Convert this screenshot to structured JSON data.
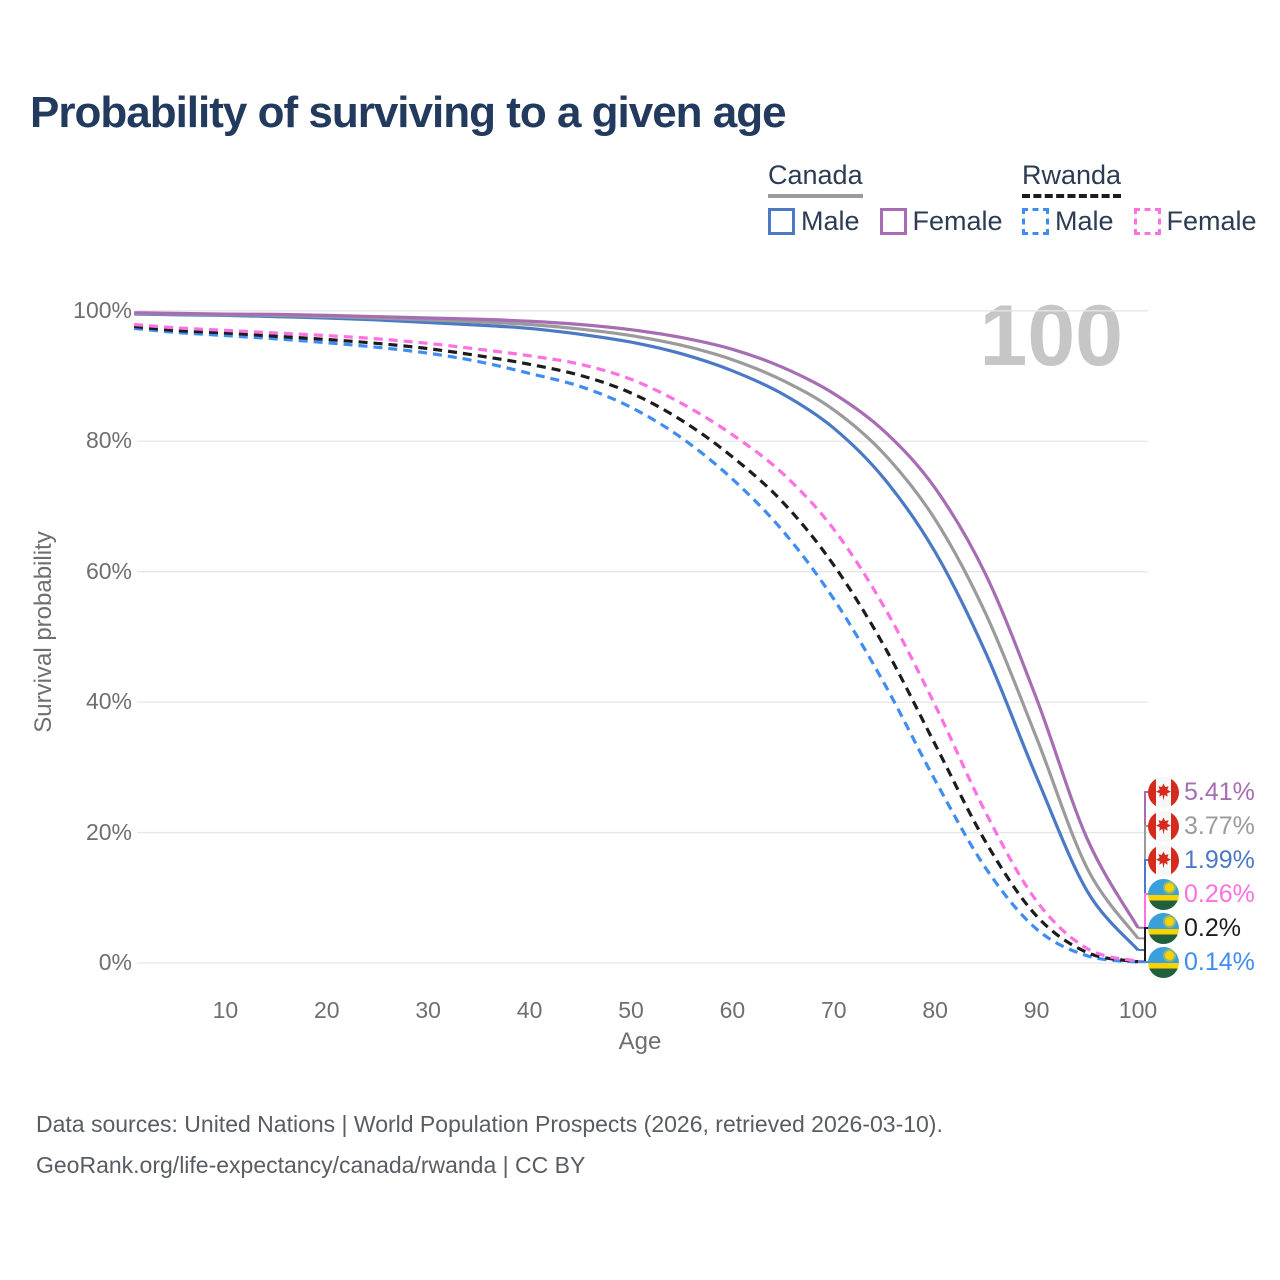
{
  "title": "Probability of surviving to a given age",
  "watermark_age": "100",
  "legend": {
    "groups": [
      {
        "name": "Canada",
        "line_style": "solid",
        "underline_color": "#9b9b9b",
        "items": [
          {
            "label": "Male",
            "color": "#4b79c5"
          },
          {
            "label": "Female",
            "color": "#a76db3"
          }
        ]
      },
      {
        "name": "Rwanda",
        "line_style": "dashed",
        "underline_color": "#1c1c1c",
        "items": [
          {
            "label": "Male",
            "color": "#3f8df2"
          },
          {
            "label": "Female",
            "color": "#ff70e2"
          }
        ]
      }
    ]
  },
  "axes": {
    "y_title": "Survival probability",
    "x_title": "Age",
    "y_ticks": [
      {
        "label": "100%",
        "value": 100
      },
      {
        "label": "80%",
        "value": 80
      },
      {
        "label": "60%",
        "value": 60
      },
      {
        "label": "40%",
        "value": 40
      },
      {
        "label": "20%",
        "value": 20
      },
      {
        "label": "0%",
        "value": 0
      }
    ],
    "x_ticks": [
      {
        "label": "10",
        "value": 10
      },
      {
        "label": "20",
        "value": 20
      },
      {
        "label": "30",
        "value": 30
      },
      {
        "label": "40",
        "value": 40
      },
      {
        "label": "50",
        "value": 50
      },
      {
        "label": "60",
        "value": 60
      },
      {
        "label": "70",
        "value": 70
      },
      {
        "label": "80",
        "value": 80
      },
      {
        "label": "90",
        "value": 90
      },
      {
        "label": "100",
        "value": 100
      }
    ]
  },
  "chart_data": {
    "type": "line",
    "title": "Probability of surviving to a given age",
    "xlabel": "Age",
    "ylabel": "Survival probability",
    "xlim": [
      0,
      100
    ],
    "ylim_percent": [
      0,
      100
    ],
    "grid": "horizontal",
    "legend_position": "top-right",
    "x_ages": [
      1,
      5,
      10,
      15,
      20,
      25,
      30,
      35,
      40,
      45,
      50,
      55,
      60,
      65,
      70,
      75,
      80,
      85,
      90,
      95,
      100
    ],
    "series": [
      {
        "name": "Canada Female",
        "country": "Canada",
        "sex": "Female",
        "flag": "canada",
        "color": "#a76db3",
        "dash": false,
        "end_label": "5.41%",
        "values": [
          99.7,
          99.6,
          99.5,
          99.45,
          99.3,
          99.1,
          98.9,
          98.7,
          98.4,
          97.9,
          97.1,
          95.9,
          94.1,
          91.3,
          87.3,
          81.5,
          72.8,
          59.5,
          40.5,
          19.0,
          5.41
        ]
      },
      {
        "name": "Canada Both sexes",
        "country": "Canada",
        "sex": "Both",
        "flag": "canada",
        "color": "#9b9b9b",
        "dash": false,
        "end_label": "3.77%",
        "values": [
          99.6,
          99.5,
          99.4,
          99.3,
          99.1,
          98.9,
          98.6,
          98.3,
          97.9,
          97.2,
          96.2,
          94.7,
          92.5,
          89.3,
          84.8,
          78.0,
          68.0,
          53.5,
          34.5,
          14.5,
          3.77
        ]
      },
      {
        "name": "Canada Male",
        "country": "Canada",
        "sex": "Male",
        "flag": "canada",
        "color": "#4b79c5",
        "dash": false,
        "end_label": "1.99%",
        "values": [
          99.5,
          99.4,
          99.3,
          99.1,
          98.9,
          98.6,
          98.2,
          97.8,
          97.3,
          96.4,
          95.2,
          93.4,
          90.8,
          87.2,
          82.0,
          74.2,
          63.0,
          47.5,
          28.5,
          11.0,
          1.99
        ]
      },
      {
        "name": "Rwanda Female",
        "country": "Rwanda",
        "sex": "Female",
        "flag": "rwanda",
        "color": "#ff70e2",
        "dash": true,
        "end_label": "0.26%",
        "values": [
          97.9,
          97.4,
          97.0,
          96.6,
          96.2,
          95.7,
          95.0,
          94.1,
          93.1,
          91.8,
          89.5,
          85.8,
          81.0,
          75.0,
          66.5,
          54.5,
          39.5,
          23.0,
          9.5,
          2.2,
          0.26
        ]
      },
      {
        "name": "Rwanda Both sexes",
        "country": "Rwanda",
        "sex": "Both",
        "flag": "rwanda",
        "color": "#1c1c1c",
        "dash": true,
        "end_label": "0.2%",
        "values": [
          97.6,
          97.0,
          96.6,
          96.1,
          95.6,
          95.0,
          94.2,
          93.1,
          91.8,
          90.1,
          87.4,
          83.2,
          77.6,
          70.6,
          61.0,
          48.5,
          33.5,
          18.5,
          7.2,
          1.6,
          0.2
        ]
      },
      {
        "name": "Rwanda Male",
        "country": "Rwanda",
        "sex": "Male",
        "flag": "rwanda",
        "color": "#3f8df2",
        "dash": true,
        "end_label": "0.14%",
        "values": [
          97.3,
          96.7,
          96.2,
          95.7,
          95.1,
          94.4,
          93.5,
          92.2,
          90.4,
          88.4,
          85.2,
          80.5,
          74.2,
          66.2,
          55.8,
          42.8,
          28.0,
          14.5,
          5.2,
          1.1,
          0.14
        ]
      }
    ]
  },
  "footer": {
    "line1": "Data sources: United Nations | World Population Prospects (2026, retrieved 2026-03-10).",
    "line2": "GeoRank.org/life-expectancy/canada/rwanda | CC BY"
  }
}
